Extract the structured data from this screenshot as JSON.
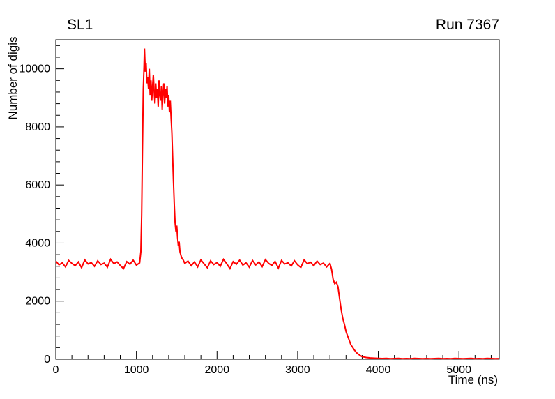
{
  "header": {
    "title": "SL1",
    "run_label": "Run 7367"
  },
  "chart_data": {
    "type": "line",
    "title": "SL1",
    "annotation": "Run 7367",
    "xlabel": "Time (ns)",
    "ylabel": "Number of digis",
    "xlim": [
      0,
      5500
    ],
    "ylim": [
      0,
      11000
    ],
    "x_major_ticks": [
      0,
      1000,
      2000,
      3000,
      4000,
      5000
    ],
    "y_major_ticks": [
      0,
      2000,
      4000,
      6000,
      8000,
      10000
    ],
    "x_minor_step": 200,
    "y_minor_step": 400,
    "grid": false,
    "legend_position": "none",
    "line_color": "#ff0000",
    "line_width": 2,
    "frame_color": "#000000",
    "points": [
      [
        0,
        3380
      ],
      [
        40,
        3250
      ],
      [
        80,
        3320
      ],
      [
        120,
        3180
      ],
      [
        160,
        3400
      ],
      [
        200,
        3300
      ],
      [
        240,
        3220
      ],
      [
        280,
        3350
      ],
      [
        320,
        3150
      ],
      [
        360,
        3420
      ],
      [
        400,
        3280
      ],
      [
        440,
        3330
      ],
      [
        480,
        3200
      ],
      [
        520,
        3390
      ],
      [
        560,
        3260
      ],
      [
        600,
        3310
      ],
      [
        640,
        3170
      ],
      [
        680,
        3440
      ],
      [
        720,
        3290
      ],
      [
        760,
        3350
      ],
      [
        800,
        3230
      ],
      [
        840,
        3120
      ],
      [
        880,
        3360
      ],
      [
        920,
        3270
      ],
      [
        960,
        3410
      ],
      [
        1000,
        3240
      ],
      [
        1040,
        3320
      ],
      [
        1055,
        3700
      ],
      [
        1065,
        5000
      ],
      [
        1075,
        7200
      ],
      [
        1085,
        9300
      ],
      [
        1095,
        10100
      ],
      [
        1100,
        10700
      ],
      [
        1105,
        10300
      ],
      [
        1110,
        9900
      ],
      [
        1120,
        10200
      ],
      [
        1130,
        9500
      ],
      [
        1140,
        9700
      ],
      [
        1150,
        9300
      ],
      [
        1160,
        10000
      ],
      [
        1170,
        9100
      ],
      [
        1180,
        9600
      ],
      [
        1190,
        8900
      ],
      [
        1200,
        9400
      ],
      [
        1210,
        9800
      ],
      [
        1220,
        9200
      ],
      [
        1230,
        8800
      ],
      [
        1240,
        9500
      ],
      [
        1250,
        9000
      ],
      [
        1260,
        9300
      ],
      [
        1270,
        8700
      ],
      [
        1280,
        9600
      ],
      [
        1290,
        9100
      ],
      [
        1300,
        8900
      ],
      [
        1310,
        9400
      ],
      [
        1320,
        8600
      ],
      [
        1330,
        9200
      ],
      [
        1340,
        9500
      ],
      [
        1350,
        8800
      ],
      [
        1360,
        9300
      ],
      [
        1370,
        9000
      ],
      [
        1380,
        9400
      ],
      [
        1390,
        8700
      ],
      [
        1400,
        9100
      ],
      [
        1410,
        8500
      ],
      [
        1420,
        8900
      ],
      [
        1430,
        8300
      ],
      [
        1440,
        7800
      ],
      [
        1450,
        6900
      ],
      [
        1460,
        6100
      ],
      [
        1470,
        5300
      ],
      [
        1480,
        4700
      ],
      [
        1490,
        4400
      ],
      [
        1500,
        4600
      ],
      [
        1510,
        4200
      ],
      [
        1520,
        3900
      ],
      [
        1530,
        4050
      ],
      [
        1540,
        3700
      ],
      [
        1560,
        3500
      ],
      [
        1580,
        3420
      ],
      [
        1600,
        3300
      ],
      [
        1640,
        3380
      ],
      [
        1680,
        3220
      ],
      [
        1720,
        3350
      ],
      [
        1760,
        3180
      ],
      [
        1800,
        3420
      ],
      [
        1840,
        3280
      ],
      [
        1880,
        3150
      ],
      [
        1920,
        3390
      ],
      [
        1960,
        3260
      ],
      [
        2000,
        3330
      ],
      [
        2040,
        3200
      ],
      [
        2080,
        3440
      ],
      [
        2120,
        3290
      ],
      [
        2160,
        3120
      ],
      [
        2200,
        3360
      ],
      [
        2240,
        3270
      ],
      [
        2280,
        3410
      ],
      [
        2320,
        3240
      ],
      [
        2360,
        3320
      ],
      [
        2400,
        3170
      ],
      [
        2440,
        3400
      ],
      [
        2480,
        3250
      ],
      [
        2520,
        3350
      ],
      [
        2560,
        3190
      ],
      [
        2600,
        3430
      ],
      [
        2640,
        3300
      ],
      [
        2680,
        3230
      ],
      [
        2720,
        3370
      ],
      [
        2760,
        3140
      ],
      [
        2800,
        3400
      ],
      [
        2840,
        3280
      ],
      [
        2880,
        3320
      ],
      [
        2920,
        3210
      ],
      [
        2960,
        3390
      ],
      [
        3000,
        3250
      ],
      [
        3040,
        3160
      ],
      [
        3080,
        3420
      ],
      [
        3120,
        3290
      ],
      [
        3160,
        3340
      ],
      [
        3200,
        3220
      ],
      [
        3240,
        3380
      ],
      [
        3280,
        3260
      ],
      [
        3320,
        3310
      ],
      [
        3360,
        3180
      ],
      [
        3400,
        3300
      ],
      [
        3420,
        3100
      ],
      [
        3440,
        2750
      ],
      [
        3460,
        2600
      ],
      [
        3480,
        2650
      ],
      [
        3500,
        2500
      ],
      [
        3520,
        2100
      ],
      [
        3540,
        1700
      ],
      [
        3560,
        1400
      ],
      [
        3580,
        1200
      ],
      [
        3600,
        950
      ],
      [
        3620,
        800
      ],
      [
        3640,
        650
      ],
      [
        3660,
        500
      ],
      [
        3680,
        420
      ],
      [
        3700,
        330
      ],
      [
        3720,
        260
      ],
      [
        3740,
        200
      ],
      [
        3760,
        160
      ],
      [
        3780,
        120
      ],
      [
        3800,
        90
      ],
      [
        3850,
        60
      ],
      [
        3900,
        45
      ],
      [
        3950,
        35
      ],
      [
        4000,
        30
      ],
      [
        4050,
        25
      ],
      [
        4100,
        30
      ],
      [
        4150,
        20
      ],
      [
        4200,
        25
      ],
      [
        4250,
        30
      ],
      [
        4300,
        20
      ],
      [
        4350,
        25
      ],
      [
        4400,
        20
      ],
      [
        4450,
        30
      ],
      [
        4500,
        25
      ],
      [
        4550,
        20
      ],
      [
        4600,
        25
      ],
      [
        4650,
        20
      ],
      [
        4700,
        25
      ],
      [
        4750,
        30
      ],
      [
        4800,
        20
      ],
      [
        4850,
        25
      ],
      [
        4900,
        20
      ],
      [
        4950,
        30
      ],
      [
        5000,
        25
      ],
      [
        5050,
        20
      ],
      [
        5100,
        25
      ],
      [
        5150,
        30
      ],
      [
        5200,
        20
      ],
      [
        5250,
        25
      ],
      [
        5300,
        20
      ],
      [
        5350,
        30
      ],
      [
        5400,
        25
      ],
      [
        5450,
        20
      ],
      [
        5500,
        22
      ]
    ]
  }
}
